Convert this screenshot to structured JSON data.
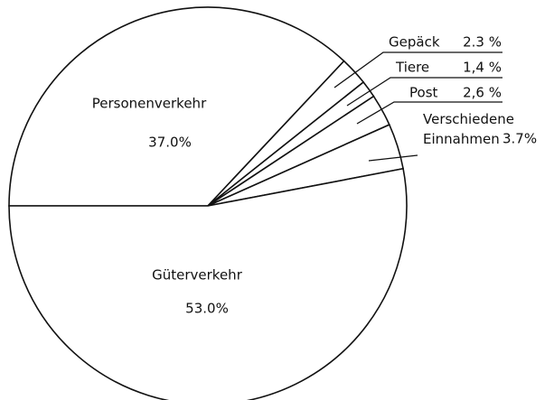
{
  "chart_data": {
    "type": "pie",
    "categories": [
      "Personenverkehr",
      "Gepäck",
      "Tiere",
      "Post",
      "Verschiedene Einnahmen",
      "Güterverkehr"
    ],
    "values": [
      37.0,
      2.3,
      1.4,
      2.6,
      3.7,
      53.0
    ],
    "value_labels": [
      "37.0%",
      "2.3 %",
      "1,4 %",
      "2,6 %",
      "3.7%",
      "53.0%"
    ],
    "color": "#ffffff"
  }
}
